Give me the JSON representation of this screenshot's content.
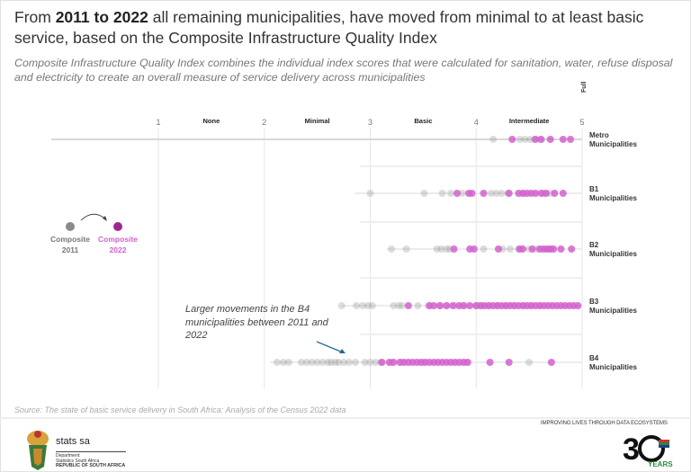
{
  "title": {
    "pre": "From ",
    "bold": "2011 to 2022",
    "post": " all remaining municipalities, have moved from minimal to at least basic service, based on the Composite Infrastructure Quality Index"
  },
  "subtitle": "Composite Infrastructure Quality Index combines the individual index scores that were calculated for sanitation, water, refuse disposal and electricity to create an overall measure of service delivery across municipalities",
  "annotation": "Larger movements in the B4 municipalities between 2011 and 2022",
  "source": "Source: The state of basic service delivery in South Africa: Analysis of the Census 2022 data",
  "footer": {
    "tagline": "IMPROVING LIVES THROUGH DATA ECOSYSTEMS",
    "org": "stats sa",
    "dept_line1": "Department:",
    "dept_line2": "Statistics South Africa",
    "dept_line3": "REPUBLIC OF SOUTH AFRICA",
    "logo_30": "30 YEARS OF FREEDOM"
  },
  "colors": {
    "composite_2011": "#9a9a9a",
    "composite_2022": "#d560cf",
    "legend_2022_dot": "#a0268f",
    "arrow": "#1f6d8c"
  },
  "chart_data": {
    "type": "scatter",
    "title": "",
    "xlim": [
      1,
      5
    ],
    "xticks": [
      "1",
      "2",
      "3",
      "4",
      "5"
    ],
    "bands": [
      {
        "label": "None",
        "from": 1,
        "to": 2
      },
      {
        "label": "Minimal",
        "from": 2,
        "to": 3
      },
      {
        "label": "Basic",
        "from": 3,
        "to": 4
      },
      {
        "label": "Intermediate",
        "from": 4,
        "to": 5
      },
      {
        "label": "Full",
        "at": 5
      }
    ],
    "legend": [
      {
        "name": "Composite 2011"
      },
      {
        "name": "Composite 2022"
      }
    ],
    "legend_placement": "left",
    "grid": true,
    "categories": [
      "Metro Municipalities",
      "B1 Municipalities",
      "B2 Municipalities",
      "B3 Municipalities",
      "B4 Municipalities"
    ],
    "series": [
      {
        "name": "Composite 2011",
        "values": [
          [
            4.16,
            4.41,
            4.46,
            4.51,
            4.55,
            4.62
          ],
          [
            3.0,
            3.51,
            3.68,
            3.76,
            3.87,
            4.14,
            4.19,
            4.24,
            4.3,
            4.45,
            4.6,
            4.65,
            4.7
          ],
          [
            3.2,
            3.34,
            3.63,
            3.67,
            3.72,
            3.75,
            4.07,
            4.25,
            4.32,
            4.4,
            4.5,
            4.57,
            4.62,
            4.7
          ],
          [
            2.73,
            2.87,
            2.93,
            2.98,
            3.02,
            3.22,
            3.27,
            3.3,
            3.45,
            3.55,
            3.65,
            3.72,
            3.8,
            3.9,
            4.0,
            4.05,
            4.12,
            4.2,
            4.28,
            4.35,
            4.45,
            4.52,
            4.6
          ],
          [
            2.12,
            2.18,
            2.23,
            2.35,
            2.4,
            2.45,
            2.5,
            2.55,
            2.6,
            2.63,
            2.67,
            2.7,
            2.75,
            2.8,
            2.86,
            2.95,
            3.0,
            3.05,
            3.1,
            3.2,
            3.3,
            3.5,
            3.9,
            4.5
          ]
        ]
      },
      {
        "name": "Composite 2022",
        "values": [
          [
            4.34,
            4.56,
            4.61,
            4.7,
            4.82,
            4.89
          ],
          [
            3.82,
            3.93,
            3.96,
            4.07,
            4.31,
            4.4,
            4.44,
            4.48,
            4.52,
            4.56,
            4.62,
            4.66,
            4.74,
            4.82
          ],
          [
            3.79,
            3.94,
            3.98,
            4.21,
            4.41,
            4.44,
            4.53,
            4.6,
            4.64,
            4.67,
            4.7,
            4.73,
            4.8,
            4.9
          ],
          [
            3.36,
            3.56,
            3.6,
            3.66,
            3.72,
            3.78,
            3.84,
            3.88,
            3.94,
            4.0,
            4.04,
            4.08,
            4.12,
            4.16,
            4.2,
            4.24,
            4.28,
            4.32,
            4.36,
            4.4,
            4.44,
            4.48,
            4.52,
            4.56,
            4.6,
            4.64,
            4.68,
            4.72,
            4.76,
            4.8,
            4.84,
            4.88,
            4.92,
            4.96
          ],
          [
            3.11,
            3.18,
            3.22,
            3.28,
            3.32,
            3.36,
            3.4,
            3.44,
            3.48,
            3.52,
            3.56,
            3.6,
            3.64,
            3.68,
            3.72,
            3.76,
            3.8,
            3.84,
            3.88,
            3.92,
            4.13,
            4.31,
            4.71
          ]
        ]
      }
    ]
  }
}
